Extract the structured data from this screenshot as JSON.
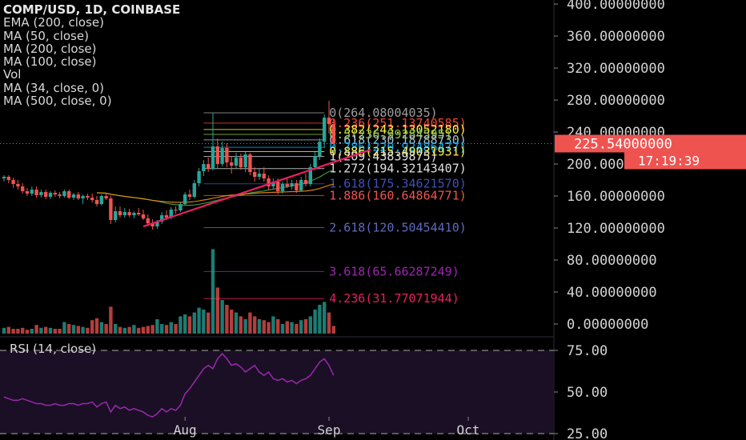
{
  "chart_title": "COMP/USD, 1D, COINBASE",
  "indicators": [
    "EMA (200, close)",
    "MA (50, close)",
    "MA (200, close)",
    "MA (100, close)",
    "Vol",
    "MA (34, close, 0)",
    "MA (500, close, 0)"
  ],
  "rsi_label": "RSI (14, close)",
  "colors": {
    "background": "#000000",
    "up": "#26a69a",
    "down": "#ef5350",
    "axis_text": "#d4d4d4",
    "price_tag": "#ef5350",
    "trendline": "#e91e63",
    "rsi_line": "#9c27b0",
    "rsi_band": "#1a0f24"
  },
  "chart_data": [
    {
      "type": "candlestick",
      "title": "COMP/USD, 1D, COINBASE",
      "x_tick_labels": [
        "Aug",
        "Sep",
        "Oct"
      ],
      "y_ticks": [
        "400.00000000",
        "360.00000000",
        "320.00000000",
        "280.00000000",
        "240.00000000",
        "200.00000000",
        "160.00000000",
        "120.00000000",
        "80.00000000",
        "40.00000000",
        "0.00000000"
      ],
      "ylim": [
        -12,
        415
      ],
      "x_axis_start": "2020-06-23",
      "current_price": {
        "label": "225.54000000",
        "value": 225.54
      },
      "countdown": "17:19:39",
      "candles": [
        {
          "date": "2020-06-23",
          "o": 182,
          "h": 186,
          "l": 178,
          "c": 184
        },
        {
          "date": "2020-06-24",
          "o": 184,
          "h": 186,
          "l": 176,
          "c": 180
        },
        {
          "date": "2020-06-25",
          "o": 180,
          "h": 183,
          "l": 170,
          "c": 175
        },
        {
          "date": "2020-06-26",
          "o": 175,
          "h": 180,
          "l": 168,
          "c": 172
        },
        {
          "date": "2020-06-27",
          "o": 172,
          "h": 176,
          "l": 163,
          "c": 166
        },
        {
          "date": "2020-06-28",
          "o": 166,
          "h": 170,
          "l": 160,
          "c": 163
        },
        {
          "date": "2020-06-29",
          "o": 163,
          "h": 172,
          "l": 160,
          "c": 168
        },
        {
          "date": "2020-06-30",
          "o": 168,
          "h": 172,
          "l": 158,
          "c": 161
        },
        {
          "date": "2020-07-01",
          "o": 161,
          "h": 168,
          "l": 158,
          "c": 165
        },
        {
          "date": "2020-07-02",
          "o": 165,
          "h": 168,
          "l": 156,
          "c": 159
        },
        {
          "date": "2020-07-03",
          "o": 159,
          "h": 166,
          "l": 156,
          "c": 164
        },
        {
          "date": "2020-07-04",
          "o": 164,
          "h": 167,
          "l": 159,
          "c": 162
        },
        {
          "date": "2020-07-05",
          "o": 162,
          "h": 165,
          "l": 157,
          "c": 160
        },
        {
          "date": "2020-07-06",
          "o": 160,
          "h": 168,
          "l": 158,
          "c": 166
        },
        {
          "date": "2020-07-07",
          "o": 166,
          "h": 168,
          "l": 156,
          "c": 158
        },
        {
          "date": "2020-07-08",
          "o": 158,
          "h": 164,
          "l": 155,
          "c": 162
        },
        {
          "date": "2020-07-09",
          "o": 162,
          "h": 165,
          "l": 155,
          "c": 157
        },
        {
          "date": "2020-07-10",
          "o": 157,
          "h": 162,
          "l": 150,
          "c": 160
        },
        {
          "date": "2020-07-11",
          "o": 160,
          "h": 163,
          "l": 155,
          "c": 158
        },
        {
          "date": "2020-07-12",
          "o": 158,
          "h": 163,
          "l": 152,
          "c": 155
        },
        {
          "date": "2020-07-13",
          "o": 155,
          "h": 160,
          "l": 147,
          "c": 150
        },
        {
          "date": "2020-07-14",
          "o": 150,
          "h": 162,
          "l": 148,
          "c": 160
        },
        {
          "date": "2020-07-15",
          "o": 160,
          "h": 164,
          "l": 155,
          "c": 157
        },
        {
          "date": "2020-07-16",
          "o": 157,
          "h": 160,
          "l": 125,
          "c": 130
        },
        {
          "date": "2020-07-17",
          "o": 130,
          "h": 147,
          "l": 127,
          "c": 141
        },
        {
          "date": "2020-07-18",
          "o": 141,
          "h": 147,
          "l": 133,
          "c": 136
        },
        {
          "date": "2020-07-19",
          "o": 136,
          "h": 145,
          "l": 133,
          "c": 140
        },
        {
          "date": "2020-07-20",
          "o": 140,
          "h": 144,
          "l": 134,
          "c": 136
        },
        {
          "date": "2020-07-21",
          "o": 136,
          "h": 141,
          "l": 132,
          "c": 139
        },
        {
          "date": "2020-07-22",
          "o": 139,
          "h": 145,
          "l": 135,
          "c": 137
        },
        {
          "date": "2020-07-23",
          "o": 137,
          "h": 143,
          "l": 130,
          "c": 132
        },
        {
          "date": "2020-07-24",
          "o": 132,
          "h": 137,
          "l": 122,
          "c": 126
        },
        {
          "date": "2020-07-25",
          "o": 126,
          "h": 131,
          "l": 118,
          "c": 122
        },
        {
          "date": "2020-07-26",
          "o": 122,
          "h": 130,
          "l": 119,
          "c": 128
        },
        {
          "date": "2020-07-27",
          "o": 128,
          "h": 140,
          "l": 125,
          "c": 136
        },
        {
          "date": "2020-07-28",
          "o": 136,
          "h": 142,
          "l": 130,
          "c": 133
        },
        {
          "date": "2020-07-29",
          "o": 133,
          "h": 146,
          "l": 131,
          "c": 143
        },
        {
          "date": "2020-07-30",
          "o": 143,
          "h": 147,
          "l": 138,
          "c": 142
        },
        {
          "date": "2020-07-31",
          "o": 142,
          "h": 152,
          "l": 140,
          "c": 150
        },
        {
          "date": "2020-08-01",
          "o": 150,
          "h": 165,
          "l": 148,
          "c": 162
        },
        {
          "date": "2020-08-02",
          "o": 162,
          "h": 168,
          "l": 155,
          "c": 159
        },
        {
          "date": "2020-08-03",
          "o": 159,
          "h": 180,
          "l": 157,
          "c": 176
        },
        {
          "date": "2020-08-04",
          "o": 176,
          "h": 195,
          "l": 172,
          "c": 191
        },
        {
          "date": "2020-08-05",
          "o": 191,
          "h": 205,
          "l": 185,
          "c": 200
        },
        {
          "date": "2020-08-06",
          "o": 200,
          "h": 208,
          "l": 190,
          "c": 194
        },
        {
          "date": "2020-08-07",
          "o": 194,
          "h": 264,
          "l": 192,
          "c": 222
        },
        {
          "date": "2020-08-08",
          "o": 222,
          "h": 232,
          "l": 195,
          "c": 200
        },
        {
          "date": "2020-08-09",
          "o": 200,
          "h": 228,
          "l": 197,
          "c": 220
        },
        {
          "date": "2020-08-10",
          "o": 220,
          "h": 226,
          "l": 196,
          "c": 202
        },
        {
          "date": "2020-08-11",
          "o": 202,
          "h": 210,
          "l": 188,
          "c": 198
        },
        {
          "date": "2020-08-12",
          "o": 198,
          "h": 214,
          "l": 195,
          "c": 208
        },
        {
          "date": "2020-08-13",
          "o": 208,
          "h": 213,
          "l": 193,
          "c": 196
        },
        {
          "date": "2020-08-14",
          "o": 196,
          "h": 215,
          "l": 190,
          "c": 212
        },
        {
          "date": "2020-08-15",
          "o": 212,
          "h": 214,
          "l": 186,
          "c": 190
        },
        {
          "date": "2020-08-16",
          "o": 190,
          "h": 196,
          "l": 178,
          "c": 184
        },
        {
          "date": "2020-08-17",
          "o": 184,
          "h": 194,
          "l": 180,
          "c": 188
        },
        {
          "date": "2020-08-18",
          "o": 188,
          "h": 196,
          "l": 178,
          "c": 182
        },
        {
          "date": "2020-08-19",
          "o": 182,
          "h": 186,
          "l": 168,
          "c": 172
        },
        {
          "date": "2020-08-20",
          "o": 172,
          "h": 182,
          "l": 168,
          "c": 178
        },
        {
          "date": "2020-08-21",
          "o": 178,
          "h": 182,
          "l": 162,
          "c": 166
        },
        {
          "date": "2020-08-22",
          "o": 166,
          "h": 178,
          "l": 163,
          "c": 175
        },
        {
          "date": "2020-08-23",
          "o": 175,
          "h": 184,
          "l": 170,
          "c": 172
        },
        {
          "date": "2020-08-24",
          "o": 172,
          "h": 180,
          "l": 168,
          "c": 176
        },
        {
          "date": "2020-08-25",
          "o": 176,
          "h": 180,
          "l": 164,
          "c": 167
        },
        {
          "date": "2020-08-26",
          "o": 167,
          "h": 184,
          "l": 165,
          "c": 180
        },
        {
          "date": "2020-08-27",
          "o": 180,
          "h": 188,
          "l": 172,
          "c": 175
        },
        {
          "date": "2020-08-28",
          "o": 175,
          "h": 200,
          "l": 172,
          "c": 196
        },
        {
          "date": "2020-08-29",
          "o": 196,
          "h": 215,
          "l": 192,
          "c": 210
        },
        {
          "date": "2020-08-30",
          "o": 210,
          "h": 232,
          "l": 205,
          "c": 228
        },
        {
          "date": "2020-08-31",
          "o": 228,
          "h": 262,
          "l": 220,
          "c": 258
        },
        {
          "date": "2020-09-01",
          "o": 258,
          "h": 279,
          "l": 238,
          "c": 250
        },
        {
          "date": "2020-09-02",
          "o": 250,
          "h": 256,
          "l": 222,
          "c": 226
        }
      ],
      "volumes": [
        6,
        7,
        5,
        5,
        6,
        4,
        5,
        9,
        6,
        7,
        6,
        5,
        5,
        12,
        10,
        9,
        8,
        7,
        6,
        14,
        16,
        12,
        10,
        28,
        10,
        7,
        6,
        7,
        9,
        6,
        7,
        8,
        9,
        15,
        10,
        9,
        12,
        10,
        18,
        20,
        18,
        22,
        27,
        25,
        22,
        88,
        48,
        35,
        30,
        25,
        22,
        18,
        15,
        22,
        18,
        15,
        14,
        12,
        18,
        15,
        10,
        13,
        12,
        10,
        14,
        15,
        18,
        25,
        30,
        33,
        22,
        8
      ],
      "trendline": [
        {
          "date": "2020-07-23",
          "value": 122
        },
        {
          "date": "2020-09-10",
          "value": 218
        }
      ],
      "fib_levels": [
        {
          "ratio": "0",
          "price": "264.08004035",
          "value": 264.08,
          "color": "#9e9e9e"
        },
        {
          "ratio": "0.236",
          "price": "251.13740585",
          "value": 251.137,
          "color": "#f44336"
        },
        {
          "ratio": "0.382",
          "price": "243.13052180",
          "value": 243.131,
          "color": "#ffeb3b"
        },
        {
          "ratio": "0.5",
          "price": "236.99284595",
          "value": 236.993,
          "color": "#8bc34a"
        },
        {
          "ratio": "0.618",
          "price": "230.18788730",
          "value": 230.188,
          "color": "#b0bec5"
        },
        {
          "ratio": "0.786",
          "price": "220.92486477",
          "value": 220.925,
          "color": "#03a9f4"
        },
        {
          "ratio": "0.886",
          "price": "215.49031931",
          "value": 215.49,
          "color": "#ffeb3b"
        },
        {
          "ratio": "1",
          "price": "209.43839875",
          "value": 209.438,
          "color": "#e0e0e0"
        },
        {
          "ratio": "1.272",
          "price": "194.32143407",
          "value": 194.321,
          "color": "#e0e0e0"
        },
        {
          "ratio": "1.618",
          "price": "175.34621570",
          "value": 175.346,
          "color": "#3f51b5"
        },
        {
          "ratio": "1.886",
          "price": "160.64864771",
          "value": 160.649,
          "color": "#ef5350"
        },
        {
          "ratio": "2.618",
          "price": "120.50454410",
          "value": 120.505,
          "color": "#5c6bc0"
        },
        {
          "ratio": "3.618",
          "price": "65.66287249",
          "value": 65.663,
          "color": "#9c27b0"
        },
        {
          "ratio": "4.236",
          "price": "31.77071944",
          "value": 31.771,
          "color": "#e91e63"
        }
      ]
    },
    {
      "type": "line",
      "title": "RSI (14, close)",
      "y_ticks": [
        "75.00",
        "50.00",
        "25.00"
      ],
      "ylim": [
        18,
        86
      ],
      "bands": [
        75,
        25
      ],
      "values": [
        47,
        46,
        45,
        45,
        46,
        45,
        44,
        43,
        43,
        42,
        42,
        43,
        42,
        42,
        43,
        43,
        42,
        43,
        43,
        44,
        41,
        43,
        44,
        38,
        42,
        40,
        41,
        39,
        40,
        39,
        38,
        36,
        35,
        37,
        40,
        38,
        40,
        39,
        42,
        49,
        52,
        56,
        60,
        64,
        66,
        64,
        70,
        73,
        70,
        66,
        67,
        65,
        62,
        64,
        66,
        62,
        60,
        62,
        58,
        57,
        58,
        56,
        57,
        55,
        57,
        58,
        60,
        64,
        68,
        70,
        66,
        60
      ]
    }
  ]
}
